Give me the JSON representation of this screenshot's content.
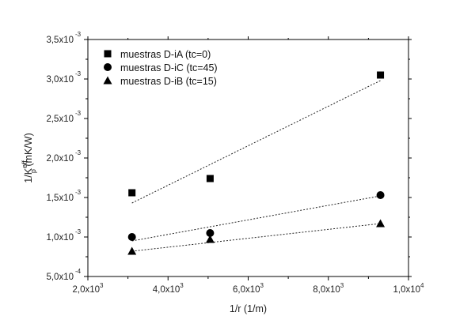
{
  "chart_data": {
    "type": "scatter",
    "xlabel": "1/r (1/m)",
    "ylabel": {
      "base": "1/K",
      "sub": "p",
      "sup": "eff",
      "units": " (mK/W)"
    },
    "xlim": [
      2000,
      10000
    ],
    "ylim": [
      0.0005,
      0.0035
    ],
    "xticks": [
      {
        "value": 2000,
        "mantissa": "2,0x10",
        "exp": "3"
      },
      {
        "value": 4000,
        "mantissa": "4,0x10",
        "exp": "3"
      },
      {
        "value": 6000,
        "mantissa": "6,0x10",
        "exp": "3"
      },
      {
        "value": 8000,
        "mantissa": "8,0x10",
        "exp": "3"
      },
      {
        "value": 10000,
        "mantissa": "1,0x10",
        "exp": "4"
      }
    ],
    "yticks": [
      {
        "value": 0.0005,
        "mantissa": "5,0x10",
        "exp": "-4"
      },
      {
        "value": 0.001,
        "mantissa": "1,0x10",
        "exp": "-3"
      },
      {
        "value": 0.0015,
        "mantissa": "1,5x10",
        "exp": "-3"
      },
      {
        "value": 0.002,
        "mantissa": "2,0x10",
        "exp": "-3"
      },
      {
        "value": 0.0025,
        "mantissa": "2,5x10",
        "exp": "-3"
      },
      {
        "value": 0.003,
        "mantissa": "3,0x10",
        "exp": "-3"
      },
      {
        "value": 0.0035,
        "mantissa": "3,5x10",
        "exp": "-3"
      }
    ],
    "series": [
      {
        "name": "muestras D-iA (tc=0)",
        "marker": "square",
        "points": [
          {
            "x": 3100,
            "y": 0.00156
          },
          {
            "x": 5050,
            "y": 0.00174
          },
          {
            "x": 9300,
            "y": 0.00305
          }
        ],
        "fit": [
          {
            "x": 3100,
            "y": 0.00143
          },
          {
            "x": 9300,
            "y": 0.00298
          }
        ]
      },
      {
        "name": "muestras D-iC (tc=45)",
        "marker": "circle",
        "points": [
          {
            "x": 3100,
            "y": 0.001
          },
          {
            "x": 5050,
            "y": 0.00105
          },
          {
            "x": 9300,
            "y": 0.00153
          }
        ],
        "fit": [
          {
            "x": 3100,
            "y": 0.00095
          },
          {
            "x": 9300,
            "y": 0.00152
          }
        ]
      },
      {
        "name": "muestras D-iB (tc=15)",
        "marker": "triangle",
        "points": [
          {
            "x": 3100,
            "y": 0.00082
          },
          {
            "x": 5050,
            "y": 0.00097
          },
          {
            "x": 9300,
            "y": 0.00117
          }
        ],
        "fit": [
          {
            "x": 3100,
            "y": 0.00082
          },
          {
            "x": 9300,
            "y": 0.00117
          }
        ]
      }
    ],
    "legend_position": "top-left"
  }
}
